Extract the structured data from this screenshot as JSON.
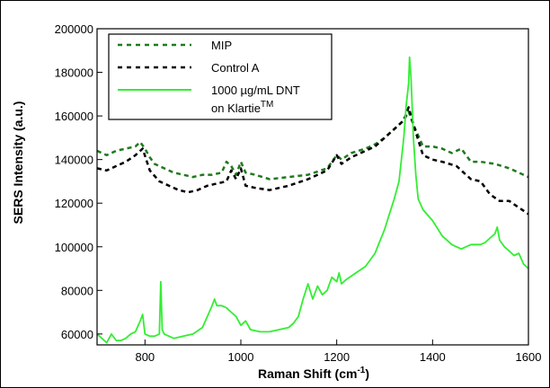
{
  "chart_data": {
    "type": "line",
    "xlabel": "Raman Shift (cm",
    "xlabel_sup": "-1",
    "xlabel_tail": ")",
    "ylabel": "SERS Intensity (a.u.)",
    "xlim": [
      700,
      1600
    ],
    "ylim": [
      55000,
      200000
    ],
    "x_ticks": [
      800,
      1000,
      1200,
      1400,
      1600
    ],
    "x_tick_labels": [
      "800",
      "1000",
      "1200",
      "1400",
      "1600"
    ],
    "y_ticks": [
      60000,
      80000,
      100000,
      120000,
      140000,
      160000,
      180000,
      200000
    ],
    "y_tick_labels": [
      "60000",
      "80000",
      "100000",
      "120000",
      "140000",
      "160000",
      "180000",
      "200000"
    ],
    "grid": false,
    "legend": {
      "placement": "top-left",
      "entries": [
        {
          "label": "MIP"
        },
        {
          "label": "Control A"
        },
        {
          "label": "1000 µg/mL DNT"
        },
        {
          "label_line2": "on Klartie",
          "label_sup": "TM"
        }
      ]
    },
    "series": [
      {
        "name": "MIP",
        "color": "#1f7a1f",
        "style": "dashed",
        "x": [
          700,
          720,
          740,
          760,
          780,
          790,
          800,
          810,
          820,
          840,
          860,
          880,
          900,
          920,
          940,
          960,
          970,
          980,
          990,
          1000,
          1010,
          1030,
          1060,
          1100,
          1140,
          1180,
          1200,
          1210,
          1230,
          1260,
          1280,
          1300,
          1320,
          1340,
          1350,
          1360,
          1380,
          1400,
          1420,
          1440,
          1460,
          1480,
          1500,
          1530,
          1560,
          1600
        ],
        "y": [
          144000,
          142000,
          144000,
          145000,
          146000,
          148000,
          145000,
          141000,
          138000,
          136000,
          134000,
          133000,
          132000,
          133000,
          133000,
          134000,
          139000,
          137000,
          133000,
          139000,
          134000,
          133000,
          131000,
          132000,
          133000,
          136000,
          142000,
          140000,
          143000,
          145000,
          147000,
          150000,
          154000,
          158000,
          162000,
          156000,
          146000,
          146000,
          145000,
          143000,
          145000,
          139000,
          139000,
          138000,
          136000,
          132000
        ]
      },
      {
        "name": "Control A",
        "color": "#000000",
        "style": "dashed",
        "x": [
          700,
          720,
          740,
          760,
          780,
          795,
          810,
          830,
          850,
          870,
          890,
          910,
          930,
          950,
          970,
          980,
          990,
          1000,
          1010,
          1030,
          1060,
          1100,
          1140,
          1180,
          1200,
          1210,
          1230,
          1260,
          1280,
          1300,
          1320,
          1340,
          1350,
          1360,
          1380,
          1400,
          1420,
          1450,
          1480,
          1500,
          1520,
          1540,
          1560,
          1580,
          1600
        ],
        "y": [
          136000,
          135000,
          137000,
          139000,
          142000,
          145000,
          135000,
          130000,
          128000,
          126000,
          125000,
          126000,
          128000,
          129000,
          130000,
          135000,
          131000,
          136000,
          128000,
          127000,
          126000,
          128000,
          131000,
          135000,
          142000,
          138000,
          141000,
          144000,
          146000,
          150000,
          154000,
          158000,
          164000,
          156000,
          142000,
          140000,
          139000,
          137000,
          131000,
          130000,
          124000,
          121000,
          121000,
          118000,
          115000
        ]
      },
      {
        "name": "1000 µg/mL DNT on Klartie™",
        "color": "#33ee33",
        "style": "solid",
        "x": [
          700,
          710,
          720,
          730,
          740,
          750,
          760,
          770,
          780,
          790,
          795,
          800,
          810,
          820,
          830,
          833,
          836,
          840,
          850,
          860,
          880,
          900,
          920,
          930,
          940,
          945,
          950,
          960,
          970,
          980,
          990,
          1000,
          1010,
          1020,
          1040,
          1060,
          1080,
          1100,
          1110,
          1120,
          1130,
          1140,
          1150,
          1160,
          1170,
          1180,
          1190,
          1200,
          1205,
          1210,
          1220,
          1240,
          1260,
          1280,
          1300,
          1310,
          1320,
          1330,
          1340,
          1345,
          1350,
          1352,
          1355,
          1360,
          1365,
          1370,
          1380,
          1400,
          1420,
          1440,
          1460,
          1480,
          1500,
          1510,
          1520,
          1530,
          1535,
          1540,
          1550,
          1560,
          1570,
          1580,
          1590,
          1600
        ],
        "y": [
          60000,
          58000,
          56000,
          60000,
          57000,
          57000,
          58000,
          60000,
          61000,
          66000,
          69000,
          60000,
          59000,
          59000,
          60000,
          84000,
          62000,
          60000,
          59000,
          58000,
          59000,
          60000,
          63000,
          68000,
          73000,
          76000,
          73000,
          73000,
          72000,
          70000,
          68000,
          64000,
          66000,
          62000,
          61000,
          61000,
          62000,
          63000,
          65000,
          68000,
          76000,
          83000,
          76000,
          82000,
          78000,
          80000,
          86000,
          84000,
          88000,
          83000,
          85000,
          88000,
          91000,
          97000,
          108000,
          115000,
          122000,
          130000,
          150000,
          165000,
          175000,
          187000,
          178000,
          150000,
          133000,
          122000,
          117000,
          112000,
          105000,
          101000,
          99000,
          101000,
          101000,
          102000,
          104000,
          106000,
          109000,
          103000,
          100000,
          98000,
          96000,
          97000,
          92000,
          90000
        ]
      }
    ]
  }
}
